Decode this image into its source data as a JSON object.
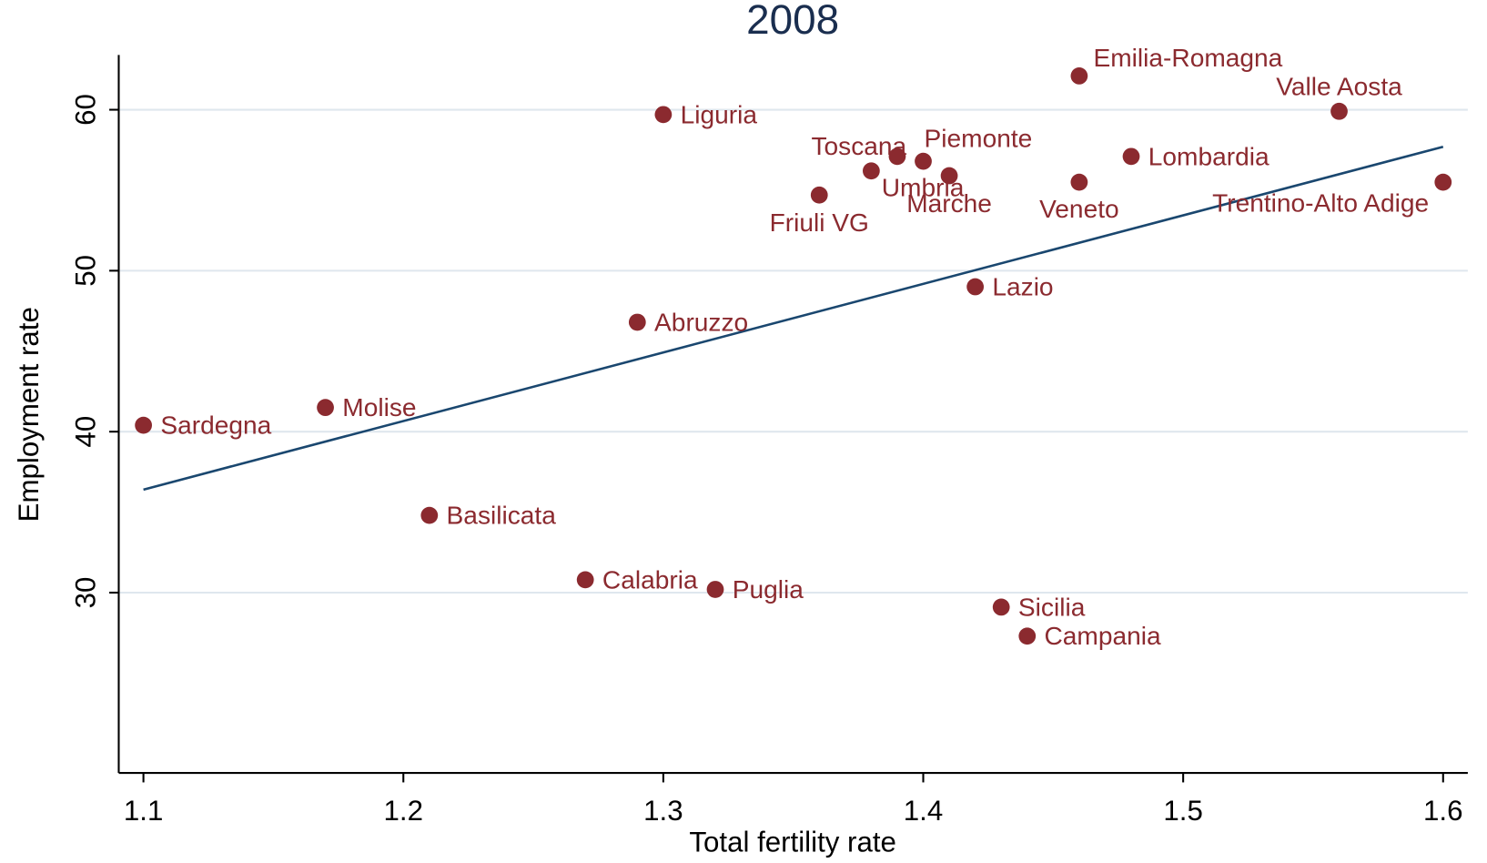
{
  "chart_data": {
    "type": "scatter",
    "title": "2008",
    "x_label": "Total fertility rate",
    "y_label": "Employment rate",
    "xlim": [
      1.0905,
      1.6095
    ],
    "ylim": [
      18.8,
      63.4
    ],
    "xticks": [
      {
        "value": 1.1,
        "label": "1.1"
      },
      {
        "value": 1.2,
        "label": "1.2"
      },
      {
        "value": 1.3,
        "label": "1.3"
      },
      {
        "value": 1.4,
        "label": "1.4"
      },
      {
        "value": 1.5,
        "label": "1.5"
      },
      {
        "value": 1.6,
        "label": "1.6"
      }
    ],
    "yticks": [
      30,
      40,
      50,
      60
    ],
    "grid": true,
    "series": [
      {
        "name": null,
        "color": "#8b2a2f",
        "labels": [
          "Sardegna",
          "Molise",
          "Basilicata",
          "Calabria",
          "Abruzzo",
          "Puglia",
          "Liguria",
          "Friuli VG",
          "Toscana",
          "Umbria",
          "Piemonte",
          "Marche",
          "Lazio",
          "Sicilia",
          "Campania",
          "Veneto",
          "Emilia-Romagna",
          "Lombardia",
          "Valle Aosta",
          "Trentino-Alto Adige"
        ],
        "x": [
          1.1,
          1.17,
          1.21,
          1.27,
          1.29,
          1.32,
          1.3,
          1.36,
          1.38,
          1.39,
          1.4,
          1.41,
          1.42,
          1.43,
          1.44,
          1.46,
          1.46,
          1.48,
          1.56,
          1.6
        ],
        "values": [
          40.4,
          41.5,
          34.8,
          30.8,
          46.8,
          30.2,
          59.7,
          54.7,
          56.2,
          57.1,
          56.8,
          55.9,
          49.0,
          29.1,
          27.3,
          55.5,
          62.1,
          57.1,
          59.9,
          55.5
        ]
      }
    ],
    "fit_line": {
      "color": "#1a476f",
      "x": [
        1.1,
        1.6
      ],
      "values": [
        36.4,
        57.7
      ]
    }
  }
}
